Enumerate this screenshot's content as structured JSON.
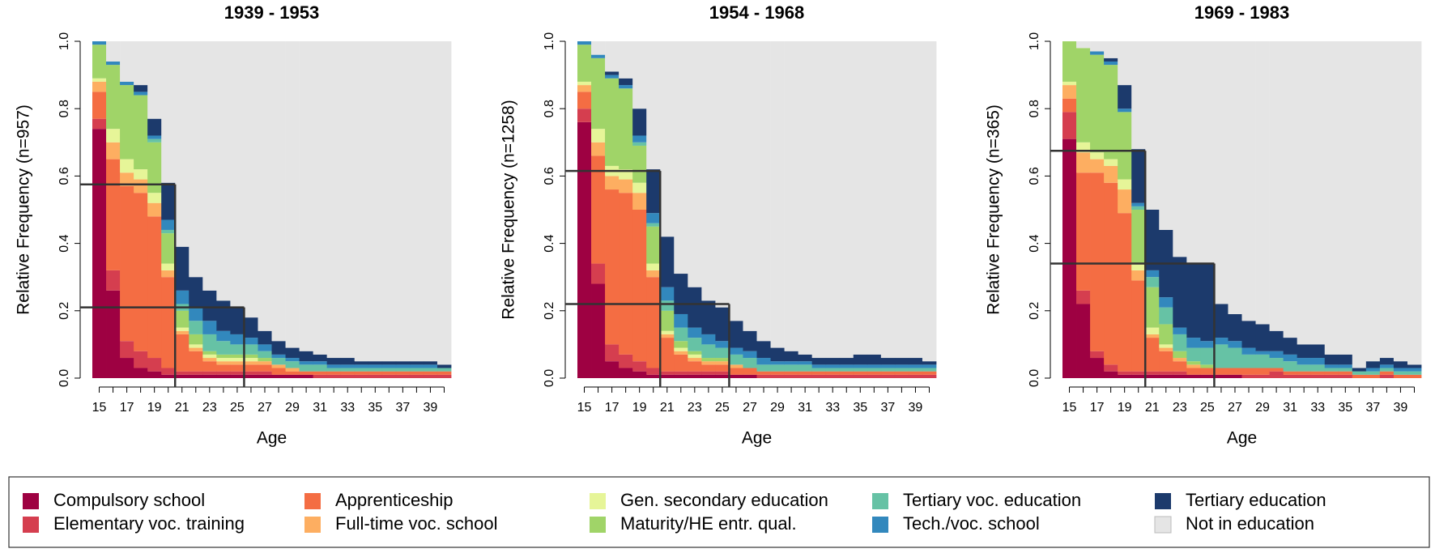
{
  "chart_data": [
    {
      "type": "stacked_bar",
      "title": "1939 - 1953",
      "x_label": "Age",
      "y_label": "Relative Frequency (n=957)",
      "categories": [
        15,
        null,
        17,
        null,
        19,
        null,
        21,
        null,
        23,
        null,
        25,
        null,
        27,
        null,
        29,
        null,
        31,
        null,
        33,
        null,
        35,
        null,
        37,
        null,
        39,
        null
      ],
      "ylim": [
        0,
        1
      ],
      "yticks": [
        {
          "value": 0,
          "label": "0.0"
        },
        0.2,
        0.4,
        0.6,
        0.8,
        {
          "value": 1,
          "label": "1.0"
        }
      ],
      "guides": [
        {
          "x": 20.5,
          "y": 0.575
        },
        {
          "x": 25.5,
          "y": 0.21
        }
      ],
      "series": [
        {
          "values": [
            0.74,
            0.26,
            0.06,
            0.03,
            0.02,
            0.01,
            0.01,
            0.01,
            0.01,
            0.01,
            0.01,
            0.01,
            0.01,
            0.01,
            0.01,
            0.01,
            0,
            0,
            0,
            0,
            0,
            0,
            0,
            0,
            0,
            0
          ]
        },
        {
          "values": [
            0.03,
            0.06,
            0.05,
            0.05,
            0.04,
            0.02,
            0.01,
            0.01,
            0.01,
            0.01,
            0.01,
            0.01,
            0.01,
            0,
            0,
            0,
            0.01,
            0.01,
            0.01,
            0.01,
            0.01,
            0.01,
            0.01,
            0.01,
            0.01,
            0.01
          ]
        },
        {
          "values": [
            0.08,
            0.33,
            0.46,
            0.47,
            0.42,
            0.27,
            0.11,
            0.06,
            0.03,
            0.02,
            0.02,
            0.02,
            0.02,
            0.02,
            0.01,
            0.01,
            0.01,
            0.01,
            0.01,
            0.01,
            0.01,
            0.01,
            0.01,
            0.01,
            0.01,
            0.01
          ]
        },
        {
          "values": [
            0.03,
            0.05,
            0.04,
            0.04,
            0.04,
            0.02,
            0.01,
            0.01,
            0.01,
            0.01,
            0.01,
            0.01,
            0.01,
            0.01,
            0.01,
            0,
            0,
            0,
            0,
            0,
            0,
            0,
            0,
            0,
            0,
            0
          ]
        },
        {
          "values": [
            0.01,
            0.04,
            0.04,
            0.03,
            0.03,
            0.02,
            0.01,
            0.01,
            0.01,
            0.01,
            0.01,
            0.01,
            0,
            0,
            0,
            0,
            0,
            0,
            0,
            0,
            0,
            0,
            0,
            0,
            0,
            0
          ]
        },
        {
          "values": [
            0.1,
            0.19,
            0.22,
            0.22,
            0.15,
            0.09,
            0.05,
            0.03,
            0.01,
            0.01,
            0.01,
            0.01,
            0.01,
            0,
            0,
            0,
            0,
            0,
            0,
            0,
            0,
            0,
            0,
            0,
            0,
            0
          ]
        },
        {
          "values": [
            0,
            0,
            0,
            0,
            0.01,
            0.01,
            0.02,
            0.04,
            0.05,
            0.04,
            0.03,
            0.03,
            0.02,
            0.02,
            0.02,
            0.02,
            0.02,
            0.01,
            0.01,
            0.01,
            0.01,
            0.01,
            0.01,
            0.01,
            0.01,
            0.01
          ]
        },
        {
          "values": [
            0.01,
            0.01,
            0.01,
            0.01,
            0.01,
            0.03,
            0.04,
            0.04,
            0.04,
            0.03,
            0.03,
            0.02,
            0.02,
            0.01,
            0.01,
            0.01,
            0.01,
            0.01,
            0.01,
            0.01,
            0.01,
            0.01,
            0.01,
            0.01,
            0.01,
            0
          ]
        },
        {
          "values": [
            0,
            0,
            0,
            0.02,
            0.05,
            0.11,
            0.13,
            0.09,
            0.09,
            0.09,
            0.08,
            0.06,
            0.04,
            0.04,
            0.03,
            0.03,
            0.02,
            0.02,
            0.02,
            0.01,
            0.01,
            0.01,
            0.01,
            0.01,
            0.01,
            0.01
          ]
        },
        {
          "values": [
            0,
            0.06,
            0.12,
            0.13,
            0.23,
            0.42,
            0.61,
            0.7,
            0.74,
            0.77,
            0.79,
            0.82,
            0.86,
            0.89,
            0.91,
            0.92,
            0.93,
            0.94,
            0.94,
            0.95,
            0.95,
            0.95,
            0.95,
            0.95,
            0.95,
            0.96
          ]
        }
      ]
    },
    {
      "type": "stacked_bar",
      "title": "1954 - 1968",
      "x_label": "Age",
      "y_label": "Relative Frequency (n=1258)",
      "categories": [
        15,
        null,
        17,
        null,
        19,
        null,
        21,
        null,
        23,
        null,
        25,
        null,
        27,
        null,
        29,
        null,
        31,
        null,
        33,
        null,
        35,
        null,
        37,
        null,
        39,
        null
      ],
      "ylim": [
        0,
        1
      ],
      "yticks": [
        {
          "value": 0,
          "label": "0.0"
        },
        0.2,
        0.4,
        0.6,
        0.8,
        {
          "value": 1,
          "label": "1.0"
        }
      ],
      "guides": [
        {
          "x": 20.5,
          "y": 0.615
        },
        {
          "x": 25.5,
          "y": 0.22
        }
      ],
      "series": [
        {
          "values": [
            0.76,
            0.28,
            0.05,
            0.03,
            0.02,
            0.01,
            0.01,
            0.01,
            0.01,
            0.01,
            0.01,
            0.01,
            0.01,
            0,
            0,
            0,
            0,
            0,
            0,
            0,
            0,
            0,
            0,
            0,
            0,
            0
          ]
        },
        {
          "values": [
            0.04,
            0.06,
            0.05,
            0.04,
            0.03,
            0.02,
            0.01,
            0.01,
            0.01,
            0.01,
            0.01,
            0,
            0,
            0.01,
            0.01,
            0.01,
            0.01,
            0.01,
            0.01,
            0.01,
            0.01,
            0.01,
            0.01,
            0.01,
            0.01,
            0.01
          ]
        },
        {
          "values": [
            0.05,
            0.32,
            0.46,
            0.48,
            0.45,
            0.27,
            0.1,
            0.05,
            0.03,
            0.02,
            0.02,
            0.02,
            0.02,
            0.01,
            0.01,
            0.01,
            0.01,
            0.01,
            0.01,
            0.01,
            0.01,
            0.01,
            0.01,
            0.01,
            0.01,
            0.01
          ]
        },
        {
          "values": [
            0.02,
            0.04,
            0.04,
            0.04,
            0.05,
            0.02,
            0.01,
            0.01,
            0.01,
            0.01,
            0.01,
            0.01,
            0,
            0,
            0,
            0,
            0,
            0,
            0,
            0,
            0,
            0,
            0,
            0,
            0,
            0
          ]
        },
        {
          "values": [
            0.01,
            0.04,
            0.03,
            0.03,
            0.03,
            0.02,
            0.01,
            0.01,
            0.01,
            0,
            0,
            0,
            0,
            0,
            0,
            0,
            0,
            0,
            0,
            0,
            0,
            0,
            0,
            0,
            0,
            0
          ]
        },
        {
          "values": [
            0.11,
            0.21,
            0.26,
            0.24,
            0.11,
            0.11,
            0.06,
            0.02,
            0.01,
            0.01,
            0.01,
            0,
            0,
            0,
            0,
            0,
            0,
            0,
            0,
            0,
            0,
            0,
            0,
            0,
            0,
            0
          ]
        },
        {
          "values": [
            0,
            0,
            0,
            0,
            0.01,
            0.01,
            0.03,
            0.04,
            0.04,
            0.04,
            0.03,
            0.03,
            0.03,
            0.02,
            0.02,
            0.02,
            0.02,
            0.01,
            0.01,
            0.01,
            0.01,
            0.01,
            0.01,
            0.01,
            0.01,
            0.01
          ]
        },
        {
          "values": [
            0.01,
            0.01,
            0.01,
            0.01,
            0.02,
            0.03,
            0.04,
            0.04,
            0.03,
            0.03,
            0.02,
            0.02,
            0.02,
            0.02,
            0.01,
            0.01,
            0.01,
            0.01,
            0.01,
            0.01,
            0.01,
            0.01,
            0.01,
            0.01,
            0.01,
            0.01
          ]
        },
        {
          "values": [
            0,
            0,
            0.01,
            0.02,
            0.08,
            0.13,
            0.15,
            0.12,
            0.12,
            0.1,
            0.1,
            0.08,
            0.06,
            0.05,
            0.04,
            0.03,
            0.02,
            0.02,
            0.02,
            0.02,
            0.03,
            0.03,
            0.02,
            0.02,
            0.02,
            0.01
          ]
        },
        {
          "values": [
            0,
            0.04,
            0.09,
            0.11,
            0.2,
            0.38,
            0.58,
            0.69,
            0.73,
            0.77,
            0.79,
            0.83,
            0.86,
            0.89,
            0.91,
            0.92,
            0.93,
            0.94,
            0.94,
            0.94,
            0.93,
            0.93,
            0.94,
            0.94,
            0.94,
            0.95
          ]
        }
      ]
    },
    {
      "type": "stacked_bar",
      "title": "1969 - 1983",
      "x_label": "Age",
      "y_label": "Relative Frequency (n=365)",
      "categories": [
        15,
        null,
        17,
        null,
        19,
        null,
        21,
        null,
        23,
        null,
        25,
        null,
        27,
        null,
        29,
        null,
        31,
        null,
        33,
        null,
        35,
        null,
        37,
        null,
        39,
        null
      ],
      "ylim": [
        0,
        1
      ],
      "yticks": [
        {
          "value": 0,
          "label": "0.0"
        },
        0.2,
        0.4,
        0.6,
        0.8,
        {
          "value": 1,
          "label": "1.0"
        }
      ],
      "guides": [
        {
          "x": 20.5,
          "y": 0.675
        },
        {
          "x": 25.5,
          "y": 0.34
        }
      ],
      "series": [
        {
          "values": [
            0.71,
            0.22,
            0.06,
            0.02,
            0.01,
            0.01,
            0.01,
            0.01,
            0.01,
            0.01,
            0.01,
            0.01,
            0.01,
            0,
            0,
            0,
            0,
            0,
            0,
            0,
            0,
            0,
            0,
            0,
            0,
            0
          ]
        },
        {
          "values": [
            0.08,
            0.04,
            0.02,
            0.02,
            0.01,
            0.01,
            0.01,
            0.01,
            0.01,
            0,
            0,
            0,
            0,
            0.01,
            0.01,
            0.02,
            0.01,
            0.01,
            0.01,
            0.01,
            0.01,
            0,
            0,
            0.01,
            0,
            0
          ]
        },
        {
          "values": [
            0.04,
            0.35,
            0.53,
            0.54,
            0.47,
            0.27,
            0.1,
            0.06,
            0.03,
            0.02,
            0.02,
            0.02,
            0.02,
            0.02,
            0.02,
            0.01,
            0.01,
            0.01,
            0.01,
            0.01,
            0.01,
            0.01,
            0.01,
            0.01,
            0.01,
            0.01
          ]
        },
        {
          "values": [
            0.04,
            0.06,
            0.04,
            0.05,
            0.07,
            0.03,
            0.01,
            0.01,
            0.01,
            0.01,
            0,
            0,
            0,
            0,
            0,
            0,
            0,
            0,
            0,
            0,
            0,
            0,
            0,
            0,
            0,
            0
          ]
        },
        {
          "values": [
            0.01,
            0.03,
            0.02,
            0.02,
            0.03,
            0.02,
            0.02,
            0.01,
            0,
            0,
            0,
            0,
            0,
            0,
            0,
            0,
            0,
            0,
            0,
            0,
            0,
            0,
            0,
            0,
            0,
            0
          ]
        },
        {
          "values": [
            0.12,
            0.28,
            0.29,
            0.28,
            0.2,
            0.16,
            0.12,
            0.06,
            0.02,
            0.01,
            0.01,
            0,
            0,
            0,
            0,
            0,
            0,
            0,
            0,
            0,
            0,
            0,
            0,
            0,
            0,
            0
          ]
        },
        {
          "values": [
            0,
            0,
            0,
            0,
            0,
            0.01,
            0.03,
            0.05,
            0.05,
            0.04,
            0.05,
            0.07,
            0.06,
            0.04,
            0.04,
            0.03,
            0.03,
            0.02,
            0.02,
            0.01,
            0.01,
            0.01,
            0.01,
            0.01,
            0.01,
            0.01
          ]
        },
        {
          "values": [
            0,
            0,
            0.01,
            0.01,
            0.01,
            0.01,
            0.02,
            0.03,
            0.02,
            0.03,
            0.02,
            0.02,
            0.02,
            0.02,
            0.01,
            0.02,
            0.02,
            0.02,
            0.02,
            0.01,
            0.01,
            0,
            0.01,
            0.01,
            0.01,
            0.01
          ]
        },
        {
          "values": [
            0,
            0,
            0,
            0.01,
            0.07,
            0.16,
            0.18,
            0.2,
            0.21,
            0.22,
            0.23,
            0.1,
            0.08,
            0.08,
            0.08,
            0.06,
            0.05,
            0.04,
            0.04,
            0.03,
            0.03,
            0.01,
            0.02,
            0.02,
            0.02,
            0.01
          ]
        },
        {
          "values": [
            0,
            0.02,
            0.03,
            0.05,
            0.13,
            0.32,
            0.5,
            0.56,
            0.64,
            0.66,
            0.66,
            0.78,
            0.81,
            0.83,
            0.84,
            0.86,
            0.88,
            0.9,
            0.9,
            0.93,
            0.93,
            0.97,
            0.95,
            0.94,
            0.95,
            0.96
          ]
        }
      ]
    }
  ],
  "legend": {
    "items": [
      {
        "name": "Compulsory school",
        "color": "#9E0142"
      },
      {
        "name": "Elementary voc. training",
        "color": "#D53E4F"
      },
      {
        "name": "Apprenticeship",
        "color": "#F46D43"
      },
      {
        "name": "Full-time voc. school",
        "color": "#FDAE61"
      },
      {
        "name": "Gen. secondary education",
        "color": "#E6F598"
      },
      {
        "name": "Maturity/HE entr. qual.",
        "color": "#A0D468"
      },
      {
        "name": "Tertiary voc. education",
        "color": "#66C2A5"
      },
      {
        "name": "Tech./voc. school",
        "color": "#3288BD"
      },
      {
        "name": "Tertiary education",
        "color": "#1C3A6C"
      },
      {
        "name": "Not in education",
        "color": "#E5E5E5"
      }
    ]
  }
}
